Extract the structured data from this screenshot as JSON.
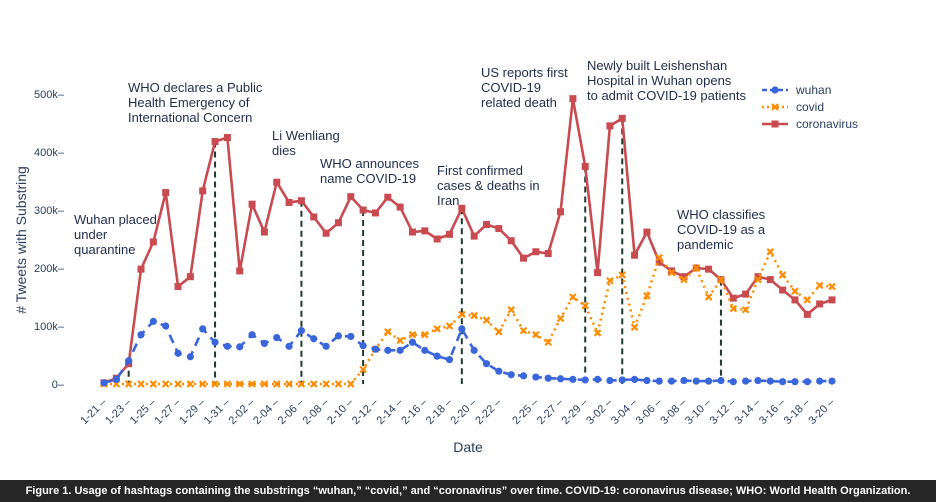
{
  "chart_data": {
    "type": "line",
    "xlabel": "Date",
    "ylabel": "# Tweets with Substring",
    "ylim": [
      0,
      520000
    ],
    "yticks": [
      0,
      100000,
      200000,
      300000,
      400000,
      500000
    ],
    "ytick_labels": [
      "0",
      "100k",
      "200k",
      "300k",
      "400k",
      "500k"
    ],
    "x": [
      "1-21",
      "1-22",
      "1-23",
      "1-24",
      "1-25",
      "1-26",
      "1-27",
      "1-28",
      "1-29",
      "1-30",
      "1-31",
      "2-01",
      "2-02",
      "2-03",
      "2-04",
      "2-05",
      "2-06",
      "2-07",
      "2-08",
      "2-09",
      "2-10",
      "2-11",
      "2-12",
      "2-13",
      "2-14",
      "2-15",
      "2-16",
      "2-17",
      "2-18",
      "2-19",
      "2-20",
      "2-21",
      "2-22",
      "2-23",
      "2-24",
      "2-25",
      "2-26",
      "2-27",
      "2-28",
      "2-29",
      "3-01",
      "3-02",
      "3-03",
      "3-04",
      "3-05",
      "3-06",
      "3-07",
      "3-08",
      "3-09",
      "3-10",
      "3-11",
      "3-12",
      "3-13",
      "3-14",
      "3-15",
      "3-16",
      "3-17",
      "3-18",
      "3-19",
      "3-20"
    ],
    "xtick_labels": [
      "1-21",
      "1-23",
      "1-25",
      "1-27",
      "1-29",
      "1-31",
      "2-02",
      "2-04",
      "2-06",
      "2-08",
      "2-10",
      "2-12",
      "2-14",
      "2-16",
      "2-18",
      "2-20",
      "2-22",
      "2-25",
      "2-27",
      "2-29",
      "3-02",
      "3-04",
      "3-06",
      "3-08",
      "3-10",
      "3-12",
      "3-14",
      "3-16",
      "3-18",
      "3-20"
    ],
    "series": [
      {
        "name": "wuhan",
        "color": "#3a66dc",
        "style": "dashed-circle",
        "values": [
          2000,
          8000,
          40000,
          85000,
          108000,
          100000,
          53000,
          47000,
          95000,
          72000,
          65000,
          64000,
          85000,
          70000,
          80000,
          65000,
          92000,
          78000,
          65000,
          83000,
          82000,
          66000,
          60000,
          58000,
          58000,
          72000,
          58000,
          48000,
          42000,
          95000,
          58000,
          35000,
          22000,
          16000,
          14000,
          12000,
          10000,
          9000,
          8000,
          7000,
          8000,
          6000,
          7000,
          8000,
          6000,
          5000,
          5000,
          6000,
          5000,
          5000,
          6000,
          4000,
          5000,
          6000,
          5000,
          4000,
          4000,
          4000,
          5000,
          5000
        ]
      },
      {
        "name": "covid",
        "color": "#ff8c00",
        "style": "dotted-x",
        "values": [
          0,
          0,
          0,
          0,
          0,
          0,
          0,
          0,
          0,
          0,
          0,
          0,
          0,
          0,
          0,
          0,
          0,
          0,
          0,
          0,
          0,
          25000,
          60000,
          90000,
          75000,
          85000,
          85000,
          95000,
          100000,
          120000,
          118000,
          110000,
          90000,
          128000,
          92000,
          85000,
          72000,
          113000,
          150000,
          135000,
          88000,
          178000,
          188000,
          98000,
          152000,
          218000,
          192000,
          180000,
          200000,
          150000,
          180000,
          130000,
          128000,
          180000,
          228000,
          188000,
          160000,
          145000,
          170000,
          168000
        ]
      },
      {
        "name": "coronavirus",
        "color": "#c84b50",
        "style": "solid-square",
        "values": [
          2000,
          10000,
          35000,
          198000,
          245000,
          330000,
          168000,
          185000,
          333000,
          418000,
          425000,
          195000,
          310000,
          262000,
          348000,
          313000,
          316000,
          288000,
          260000,
          278000,
          323000,
          300000,
          295000,
          322000,
          305000,
          262000,
          264000,
          250000,
          258000,
          303000,
          255000,
          275000,
          268000,
          247000,
          217000,
          228000,
          225000,
          297000,
          492000,
          375000,
          192000,
          445000,
          458000,
          222000,
          262000,
          210000,
          195000,
          185000,
          200000,
          198000,
          180000,
          148000,
          155000,
          185000,
          180000,
          162000,
          145000,
          120000,
          138000,
          145000
        ]
      }
    ],
    "legend": {
      "position": "top-right",
      "entries": [
        "wuhan",
        "covid",
        "coronavirus"
      ]
    },
    "events": [
      {
        "date": "1-23",
        "lines": [
          "Wuhan placed",
          "under",
          "quarantine"
        ]
      },
      {
        "date": "1-30",
        "lines": [
          "WHO declares a Public",
          "Health Emergency of",
          "International Concern"
        ]
      },
      {
        "date": "2-06",
        "lines": [
          "Li Wenliang",
          "dies"
        ]
      },
      {
        "date": "2-11",
        "lines": [
          "WHO announces",
          "name COVID-19"
        ]
      },
      {
        "date": "2-19",
        "lines": [
          "First confirmed",
          "cases & deaths in",
          "Iran"
        ]
      },
      {
        "date": "2-29",
        "lines": [
          "US reports first",
          "COVID-19",
          "related death"
        ]
      },
      {
        "date": "3-03",
        "lines": [
          "Newly built Leishenshan",
          "Hospital in Wuhan opens",
          "to admit COVID-19 patients"
        ]
      },
      {
        "date": "3-11",
        "lines": [
          "WHO classifies",
          "COVID-19 as a",
          "pandemic"
        ]
      }
    ]
  },
  "caption": "Figure 1. Usage of hashtags containing the substrings “wuhan,” “covid,” and “coronavirus” over time. COVID-19: coronavirus disease; WHO: World Health Organization."
}
